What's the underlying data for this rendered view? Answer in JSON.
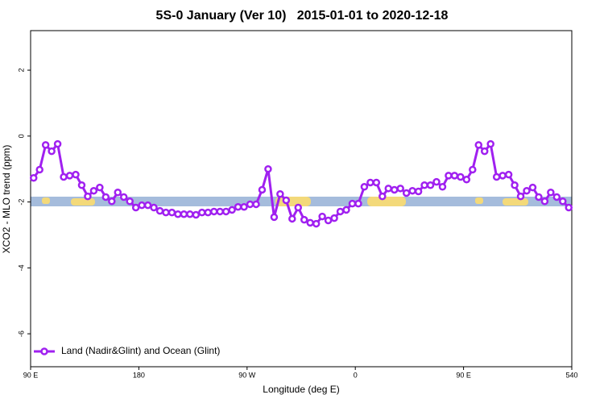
{
  "chart_data": {
    "type": "line",
    "title": "5S-0 January (Ver 10)   2015-01-01 to 2020-12-18",
    "x_label": "Longitude (deg E)",
    "y_label": "XCO2 - MLO trend (ppm)",
    "xlim": [
      90,
      540
    ],
    "ylim": [
      -7,
      3.2
    ],
    "xticks": [
      {
        "value": 90,
        "label": "90 E"
      },
      180,
      {
        "value": 270,
        "label": "90 W"
      },
      {
        "value": 360,
        "label": "0"
      },
      {
        "value": 450,
        "label": "90 E"
      },
      540
    ],
    "yticks": [
      -6,
      -4,
      -2,
      0,
      2
    ],
    "legend": "bottom-left",
    "x": [
      92.5,
      97.5,
      102.5,
      107.5,
      112.5,
      117.5,
      122.5,
      127.5,
      132.5,
      137.5,
      142.5,
      147.5,
      152.5,
      157.5,
      162.5,
      167.5,
      172.5,
      177.5,
      182.5,
      187.5,
      192.5,
      197.5,
      202.5,
      207.5,
      212.5,
      217.5,
      222.5,
      227.5,
      232.5,
      237.5,
      242.5,
      247.5,
      252.5,
      257.5,
      262.5,
      267.5,
      272.5,
      277.5,
      282.5,
      287.5,
      292.5,
      297.5,
      302.5,
      307.5,
      312.5,
      317.5,
      322.5,
      327.5,
      332.5,
      337.5,
      342.5,
      347.5,
      352.5,
      357.5,
      362.5,
      367.5,
      372.5,
      377.5,
      382.5,
      387.5,
      392.5,
      397.5,
      402.5,
      407.5,
      412.5,
      417.5,
      422.5,
      427.5,
      432.5,
      437.5,
      442.5,
      447.5,
      452.5,
      457.5,
      462.5,
      467.5,
      472.5,
      477.5,
      482.5,
      487.5,
      492.5,
      497.5,
      502.5,
      507.5,
      512.5,
      517.5,
      522.5,
      527.5,
      532.5,
      537.5
    ],
    "series": [
      {
        "name": "Land (Nadir&Glint) and Ocean (Glint)",
        "color": "#a020f0",
        "values": [
          -1.27,
          -1.02,
          -0.27,
          -0.46,
          -0.24,
          -1.24,
          -1.2,
          -1.17,
          -1.49,
          -1.83,
          -1.66,
          -1.56,
          -1.85,
          -1.98,
          -1.71,
          -1.85,
          -1.98,
          -2.17,
          -2.1,
          -2.1,
          -2.17,
          -2.27,
          -2.32,
          -2.32,
          -2.37,
          -2.37,
          -2.37,
          -2.39,
          -2.32,
          -2.32,
          -2.29,
          -2.29,
          -2.29,
          -2.24,
          -2.15,
          -2.15,
          -2.07,
          -2.07,
          -1.63,
          -1.0,
          -2.46,
          -1.76,
          -1.95,
          -2.51,
          -2.17,
          -2.54,
          -2.63,
          -2.66,
          -2.44,
          -2.56,
          -2.49,
          -2.29,
          -2.24,
          -2.05,
          -2.05,
          -1.54,
          -1.41,
          -1.41,
          -1.83,
          -1.59,
          -1.63,
          -1.59,
          -1.73,
          -1.66,
          -1.68,
          -1.49,
          -1.49,
          -1.39,
          -1.54,
          -1.2,
          -1.2,
          -1.24,
          -1.32,
          -1.02,
          -0.27,
          -0.46,
          -0.24,
          -1.24,
          -1.2,
          -1.17,
          -1.49,
          -1.83,
          -1.66,
          -1.56,
          -1.85,
          -1.98,
          -1.71,
          -1.85,
          -1.98,
          -2.17
        ]
      }
    ]
  }
}
